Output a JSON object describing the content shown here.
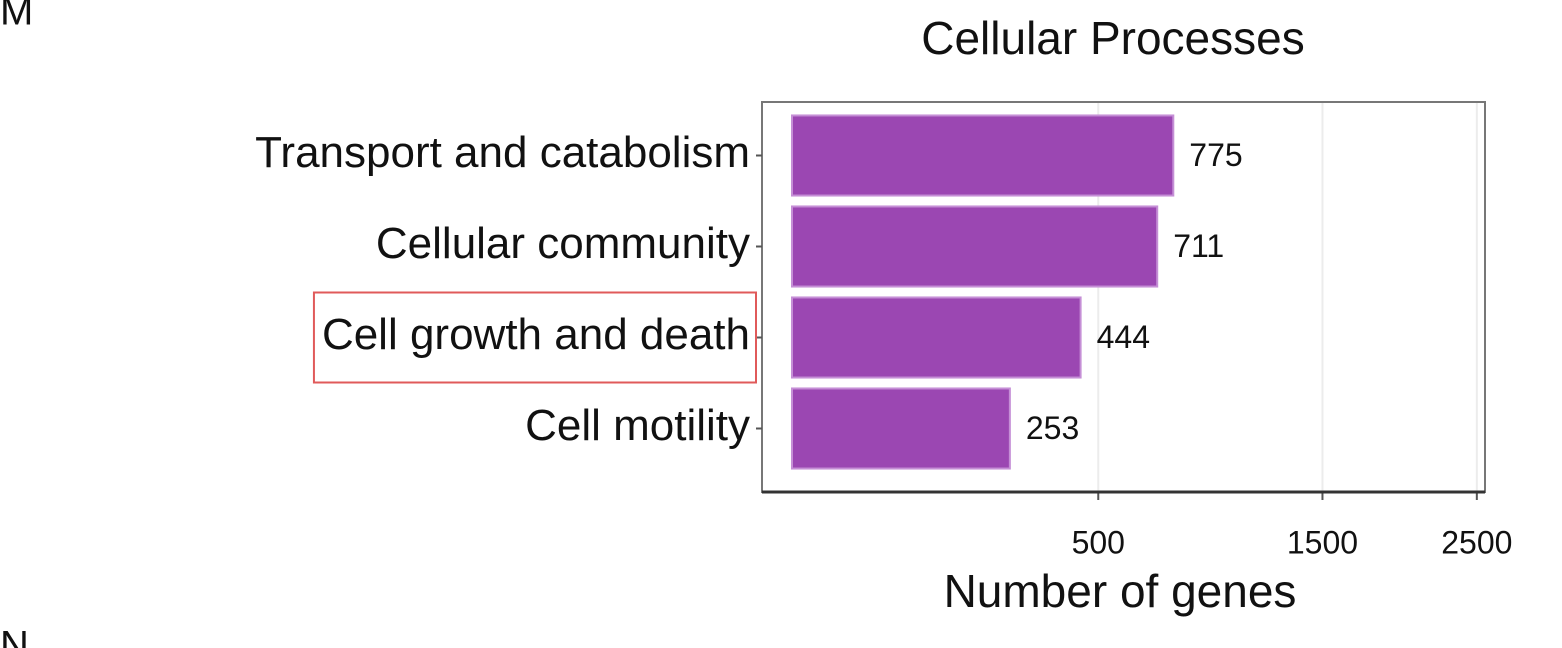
{
  "panel_labels": [
    "M",
    "N"
  ],
  "chart_data": {
    "type": "bar",
    "orientation": "horizontal",
    "title": "Cellular Processes",
    "categories": [
      "Transport and catabolism",
      "Cellular community",
      "Cell growth and death",
      "Cell motility"
    ],
    "values": [
      775,
      711,
      444,
      253
    ],
    "highlight": [
      false,
      false,
      true,
      false
    ],
    "highlight_color": "#e05a5a",
    "color": "#9b47b2",
    "x_label": "Number of genes",
    "x_scale": "sqrt",
    "xlim": [
      0,
      2560
    ],
    "xticks": [
      500,
      1500,
      2500
    ],
    "grid": true
  }
}
